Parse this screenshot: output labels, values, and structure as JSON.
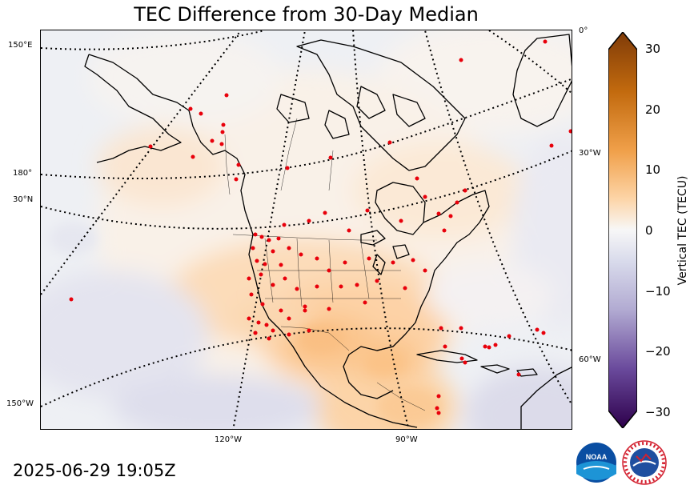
{
  "title": "TEC Difference from 30-Day Median",
  "timestamp": "2025-06-29 19:05Z",
  "map": {
    "graticule_labels": {
      "lon_150e": "150°E",
      "lon_180": "180°",
      "lat_30n": "30°N",
      "lon_150w": "150°W",
      "lon_0": "0°",
      "lon_30w": "30°W",
      "lon_60w": "60°W",
      "lon_120w": "120°W",
      "lon_90w": "90°W"
    },
    "colors": {
      "ocean_base": "#eff0f4",
      "land_outline": "#000000",
      "stations": "#e8000b",
      "grid": "#000000"
    }
  },
  "colorbar": {
    "label": "Vertical TEC (TECU)",
    "min": -30,
    "max": 30,
    "step": 2.5,
    "ticks": [
      "30",
      "20",
      "10",
      "0",
      "−10",
      "−20",
      "−30"
    ],
    "colors": {
      "high": "#7f3b08",
      "mid_high": "#fdb863",
      "zero": "#f7f7f7",
      "mid_low": "#b2abd2",
      "low": "#2d004b"
    }
  },
  "logos": {
    "left": "NOAA",
    "right": "NATIONAL WEATHER SERVICE"
  }
}
